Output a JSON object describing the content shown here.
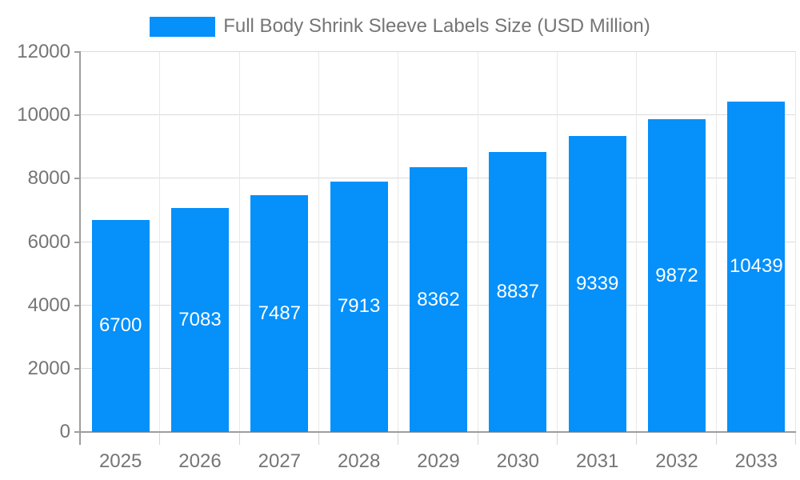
{
  "chart_data": {
    "type": "bar",
    "title": "",
    "legend": {
      "label": "Full Body Shrink Sleeve Labels Size (USD Million)",
      "position": "top"
    },
    "categories": [
      "2025",
      "2026",
      "2027",
      "2028",
      "2029",
      "2030",
      "2031",
      "2032",
      "2033"
    ],
    "series": [
      {
        "name": "Full Body Shrink Sleeve Labels Size (USD Million)",
        "values": [
          6700,
          7083,
          7487,
          7913,
          8362,
          8837,
          9339,
          9872,
          10439
        ]
      }
    ],
    "xlabel": "",
    "ylabel": "",
    "ylim": [
      0,
      12000
    ],
    "yticks": [
      0,
      2000,
      4000,
      6000,
      8000,
      10000,
      12000
    ],
    "grid": true,
    "value_labels": "inside-center",
    "colors": {
      "bar": "#0590FA",
      "value_label": "#FFFFFF",
      "axis_label": "#757575",
      "axis_line": "#9E9E9E",
      "grid_horizontal": "#DCDCDC",
      "grid_vertical": "#E8E8E8",
      "tick_minor": "#D6D6D6",
      "background": "#FFFFFF"
    }
  }
}
